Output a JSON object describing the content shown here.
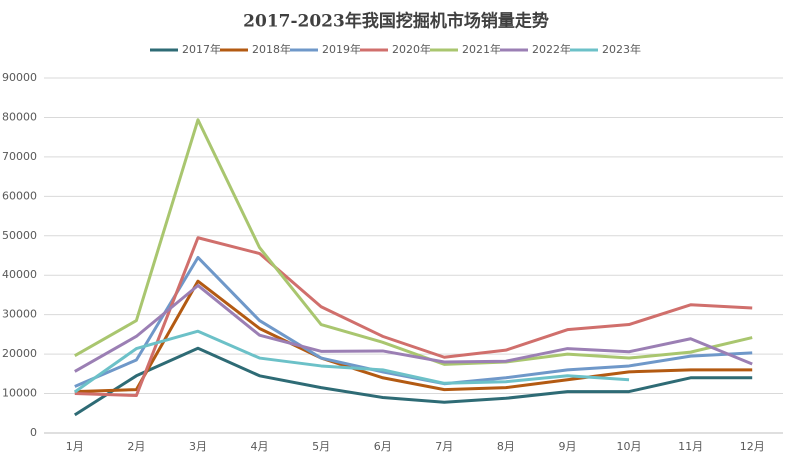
{
  "chart_data": {
    "type": "line",
    "title": "2017-2023年我国挖掘机市场销量走势",
    "categories": [
      "1月",
      "2月",
      "3月",
      "4月",
      "5月",
      "6月",
      "7月",
      "8月",
      "9月",
      "10月",
      "11月",
      "12月"
    ],
    "series": [
      {
        "name": "2017年",
        "color": "#2e6b75",
        "values": [
          4600,
          14500,
          21500,
          14500,
          11500,
          9000,
          7800,
          8800,
          10500,
          10500,
          14000,
          14000
        ]
      },
      {
        "name": "2018年",
        "color": "#b35a12",
        "values": [
          10500,
          11000,
          38500,
          26500,
          19000,
          14000,
          11000,
          11500,
          13500,
          15500,
          16000,
          16000
        ]
      },
      {
        "name": "2019年",
        "color": "#6f98c9",
        "values": [
          11800,
          18500,
          44500,
          28500,
          19000,
          15500,
          12500,
          14000,
          16000,
          17000,
          19500,
          20300
        ]
      },
      {
        "name": "2020年",
        "color": "#d06f6c",
        "values": [
          10000,
          9500,
          49500,
          45500,
          32000,
          24500,
          19200,
          21000,
          26200,
          27500,
          32500,
          31700
        ]
      },
      {
        "name": "2021年",
        "color": "#a9c66f",
        "values": [
          19600,
          28500,
          79400,
          47000,
          27500,
          23000,
          17400,
          18000,
          20000,
          19000,
          20500,
          24200
        ]
      },
      {
        "name": "2022年",
        "color": "#9b7fb4",
        "values": [
          15600,
          24500,
          37400,
          24800,
          20700,
          20800,
          18000,
          18200,
          21400,
          20600,
          23900,
          17500
        ]
      },
      {
        "name": "2023年",
        "color": "#6cc1c8",
        "values": [
          10400,
          21400,
          25800,
          19000,
          17000,
          16000,
          12600,
          13000,
          14500,
          13500,
          null,
          null
        ]
      }
    ],
    "ylim": [
      0,
      90000
    ],
    "yticks": [
      0,
      10000,
      20000,
      30000,
      40000,
      50000,
      60000,
      70000,
      80000,
      90000
    ],
    "grid": true,
    "legend": "top"
  }
}
